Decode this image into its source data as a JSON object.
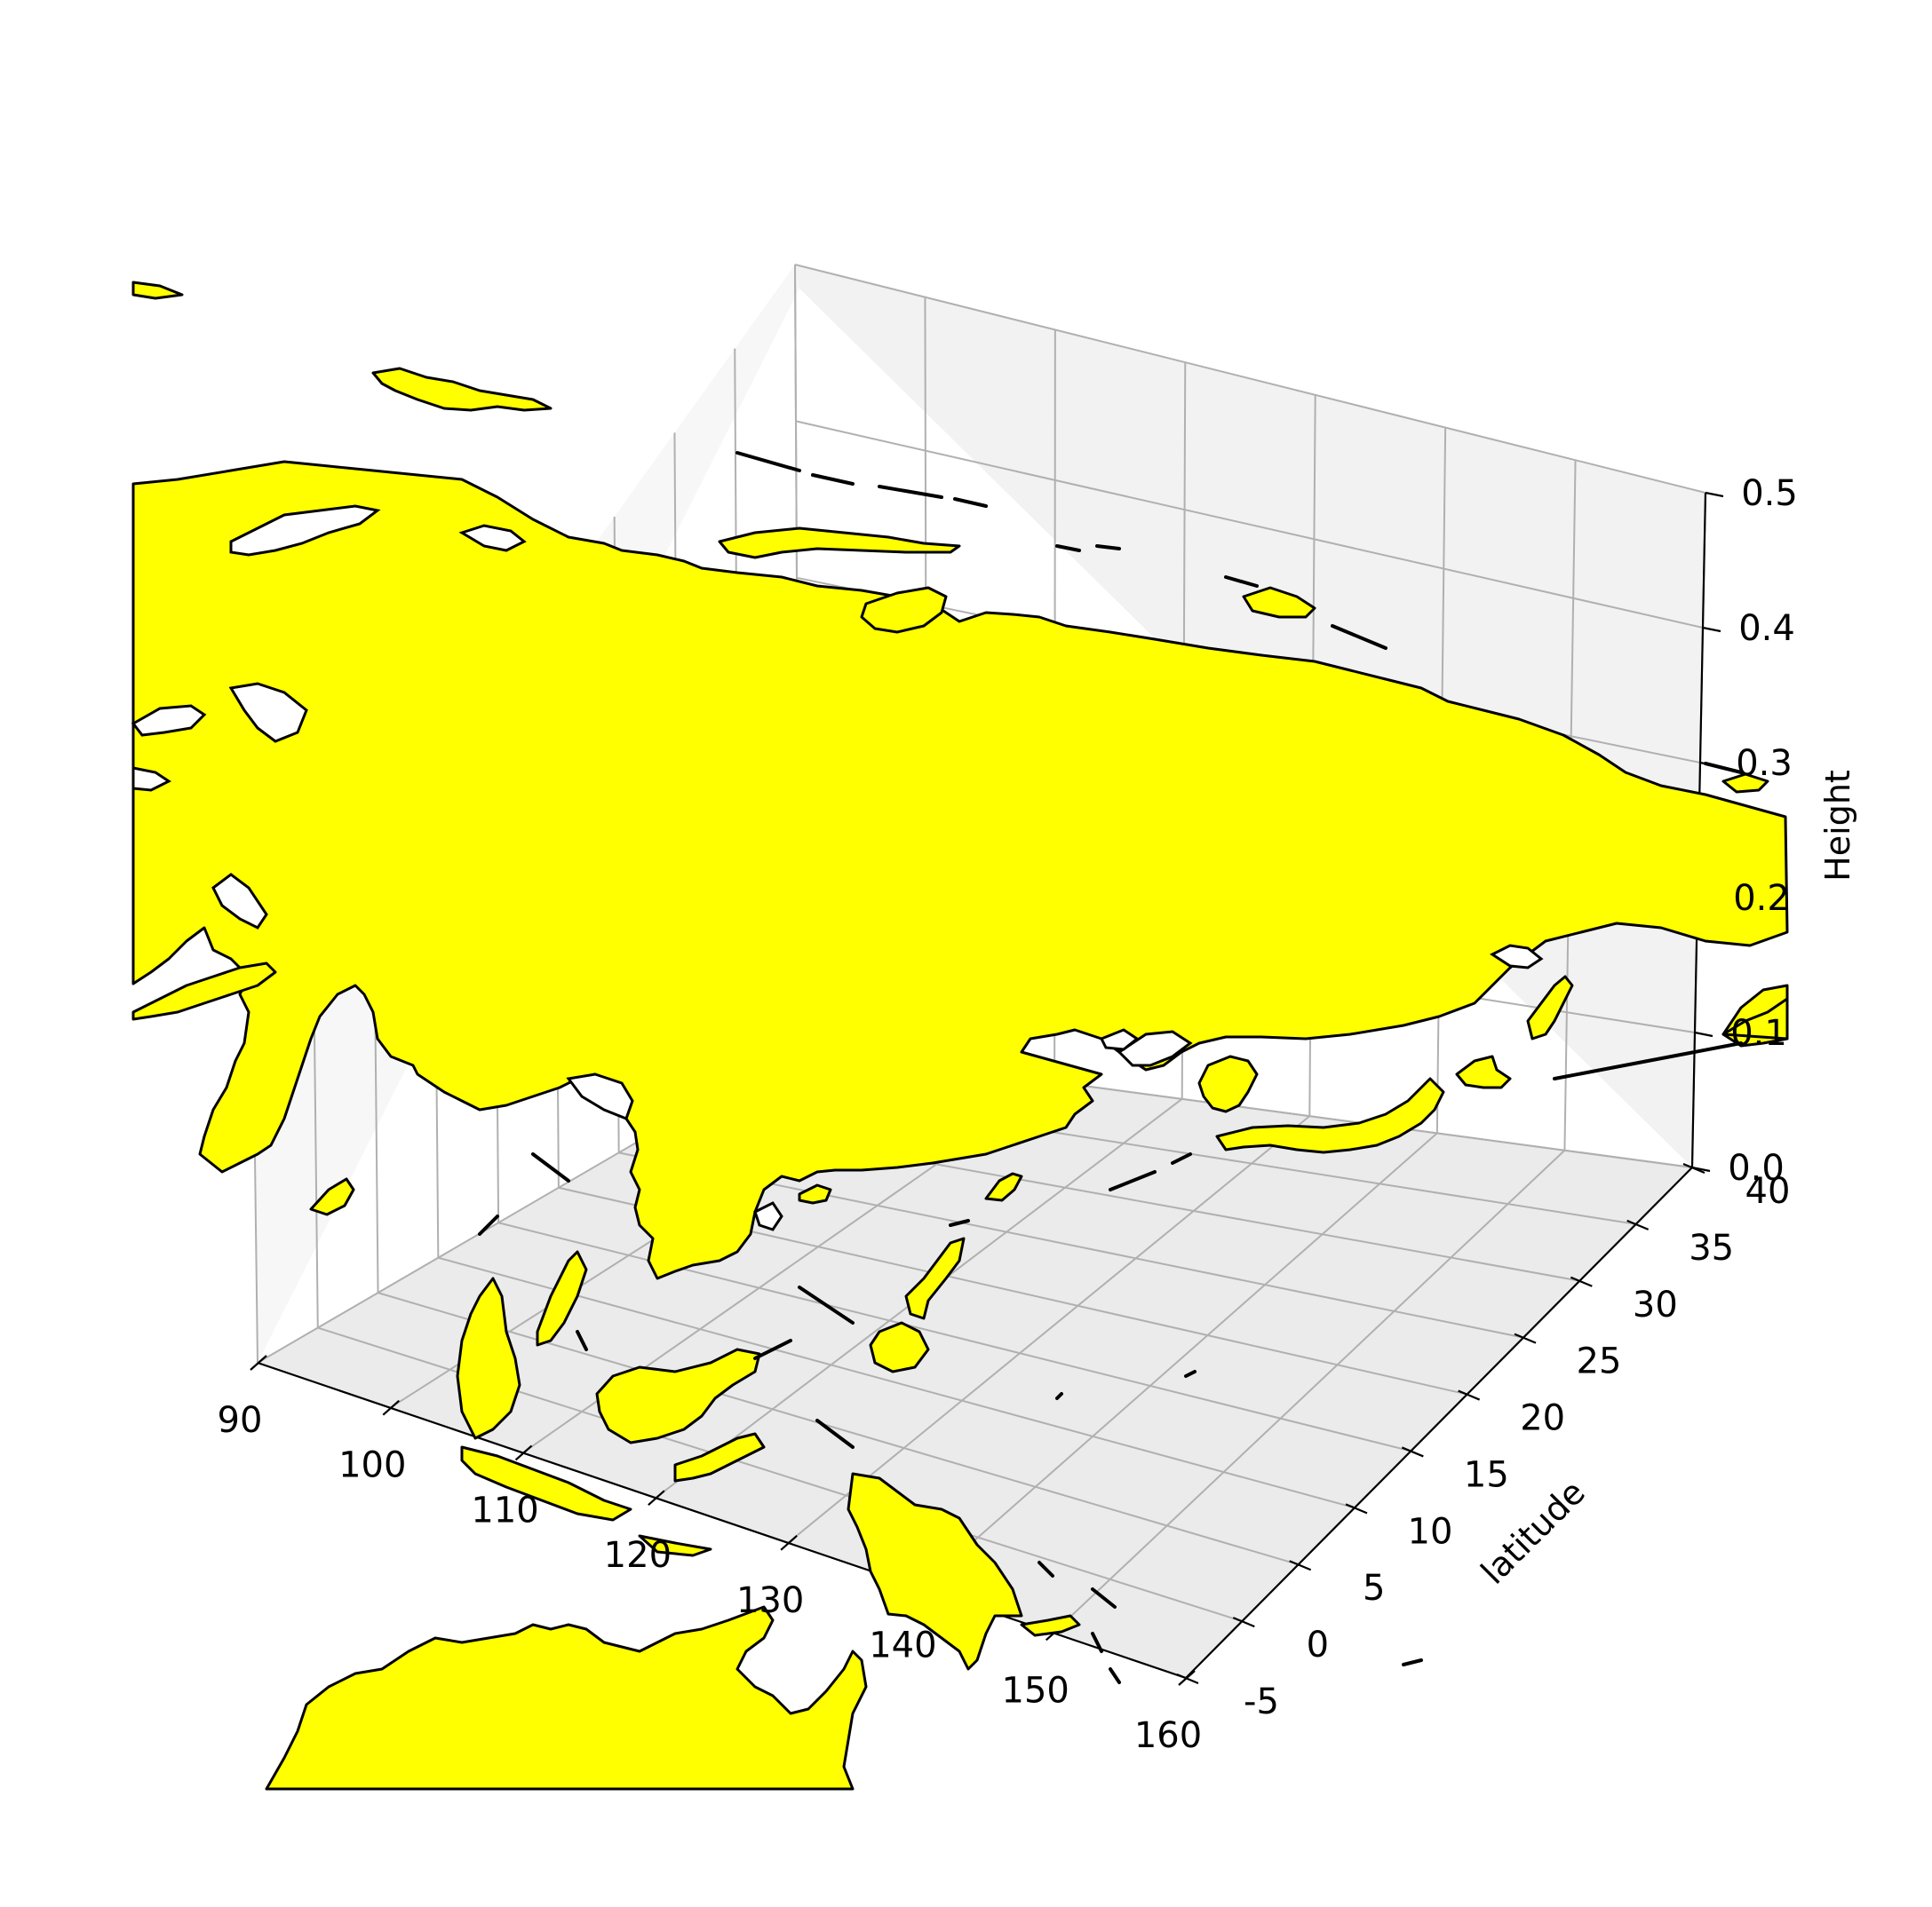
{
  "chart_data": {
    "type": "map-3d",
    "colors": {
      "land": "#ffff00",
      "coastline": "#000000",
      "pane": "#f0f0f0",
      "grid": "#b0b0b0"
    },
    "xaxis": {
      "label": "",
      "ticks": [
        "90",
        "100",
        "110",
        "120",
        "130",
        "140",
        "150",
        "160"
      ],
      "range": [
        90,
        160
      ]
    },
    "yaxis": {
      "label": "latitude",
      "ticks": [
        "-5",
        "0",
        "5",
        "10",
        "15",
        "20",
        "25",
        "30",
        "35",
        "40"
      ],
      "range": [
        -5,
        40
      ]
    },
    "zaxis": {
      "label": "Height",
      "ticks": [
        "0.0",
        "0.1",
        "0.2",
        "0.3",
        "0.4",
        "0.5"
      ],
      "range": [
        0.0,
        0.5
      ]
    },
    "grid": true
  }
}
